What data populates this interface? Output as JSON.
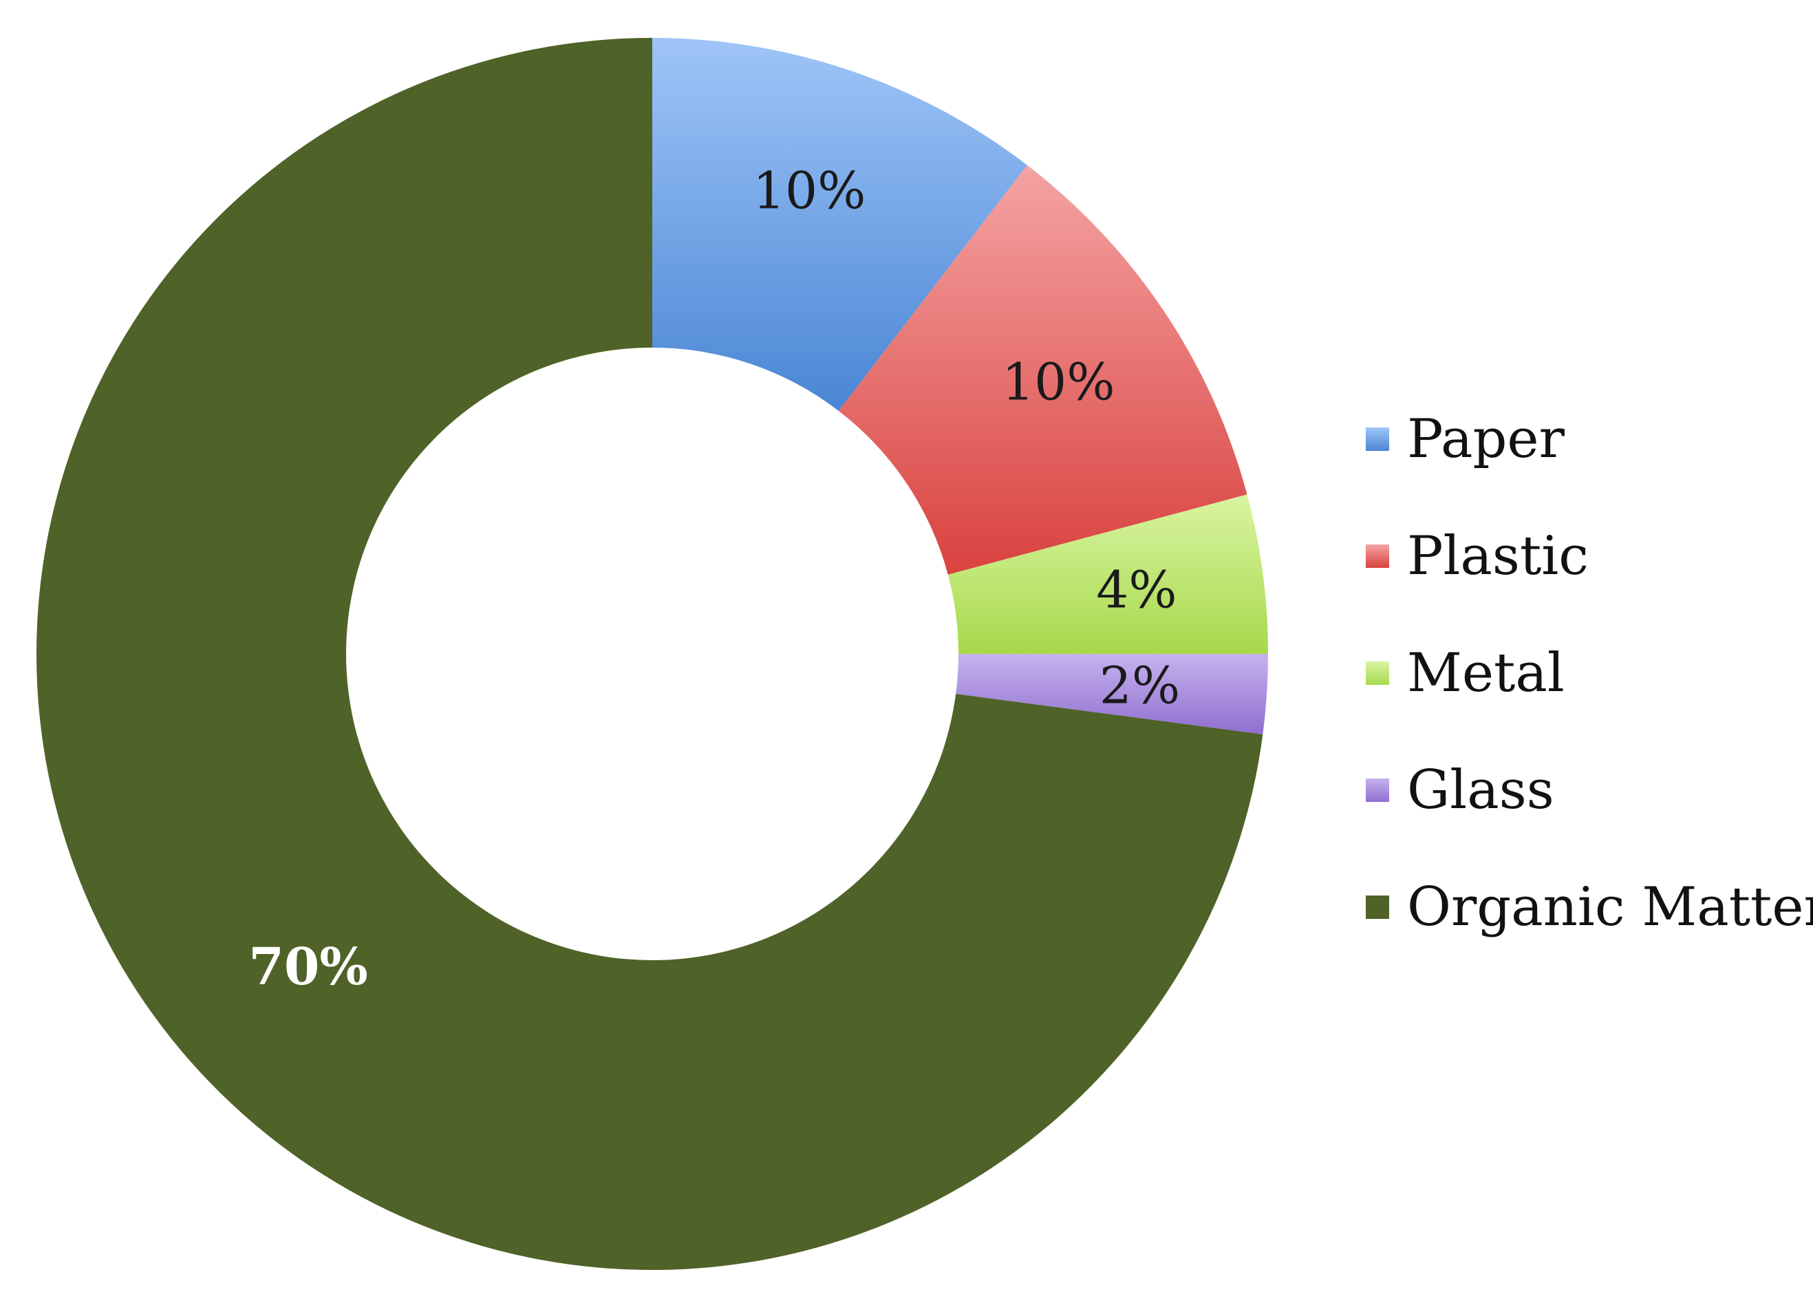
{
  "chart_data": {
    "type": "pie",
    "donut": true,
    "legend_position": "right",
    "slices": [
      {
        "name": "Paper",
        "value": 10,
        "label": "10%",
        "color": "#5b9bd5",
        "color_light": "#9fc5f8",
        "color_dark": "#4a86d4",
        "label_color": "#1a1a1a",
        "label_bold": false
      },
      {
        "name": "Plastic",
        "value": 10,
        "label": "10%",
        "color": "#e06666",
        "color_light": "#f4a3a3",
        "color_dark": "#d9423f",
        "label_color": "#1a1a1a",
        "label_bold": false
      },
      {
        "name": "Metal",
        "value": 4,
        "label": "4%",
        "color": "#b6e36a",
        "color_light": "#d9f4a2",
        "color_dark": "#a7d94b",
        "label_color": "#1a1a1a",
        "label_bold": false
      },
      {
        "name": "Glass",
        "value": 2,
        "label": "2%",
        "color": "#a98bdd",
        "color_light": "#c7b2ee",
        "color_dark": "#8f6fd0",
        "label_color": "#1a1a1a",
        "label_bold": false
      },
      {
        "name": "Organic Matter",
        "value": 70,
        "label": "70%",
        "color": "#4f6228",
        "color_light": "#4f6228",
        "color_dark": "#4f6228",
        "label_color": "#ffffff",
        "label_bold": true
      }
    ]
  }
}
